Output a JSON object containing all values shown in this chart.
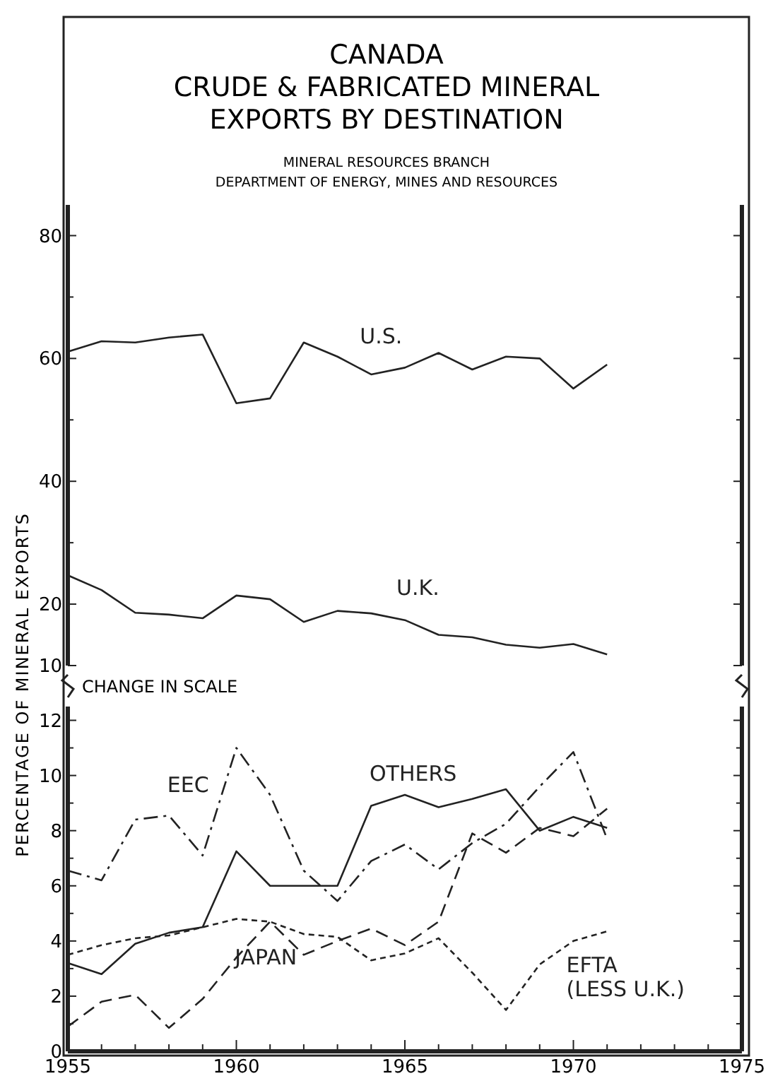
{
  "chart_data": [
    {
      "type": "line",
      "title": "CANADA\nCRUDE & FABRICATED MINERAL\nEXPORTS BY DESTINATION",
      "subtitle": "MINERAL RESOURCES BRANCH\nDEPARTMENT OF ENERGY, MINES AND RESOURCES",
      "x": [
        1955,
        1956,
        1957,
        1958,
        1959,
        1960,
        1961,
        1962,
        1963,
        1964,
        1965,
        1966,
        1967,
        1968,
        1969,
        1970,
        1971
      ],
      "xlim": [
        1955,
        1975
      ],
      "ylim": [
        10,
        85
      ],
      "yticks": [
        10,
        20,
        {
          "value": 30,
          "label": null
        },
        40,
        {
          "value": 50,
          "label": null
        },
        60,
        {
          "value": 70,
          "label": null
        },
        80
      ],
      "tick_labels": "y",
      "grid": false,
      "marker": "none",
      "series": [
        {
          "name": "U.S.",
          "color": "#222222",
          "line_style": "solid",
          "values": [
            61.1,
            62.8,
            62.6,
            63.4,
            63.9,
            52.7,
            53.5,
            62.6,
            60.3,
            57.4,
            58.5,
            60.9,
            58.2,
            60.3,
            60,
            55.1,
            59
          ]
        },
        {
          "name": "U.K.",
          "color": "#222222",
          "line_style": "solid",
          "values": [
            24.7,
            22.3,
            18.6,
            18.3,
            17.7,
            21.4,
            20.8,
            17.1,
            18.9,
            18.5,
            17.4,
            15,
            14.6,
            13.4,
            12.9,
            13.5,
            11.8
          ]
        }
      ]
    },
    {
      "type": "line",
      "ylabel": "PERCENTAGE OF MINERAL EXPORTS",
      "annotations": [
        "CHANGE IN SCALE"
      ],
      "x": [
        1955,
        1956,
        1957,
        1958,
        1959,
        1960,
        1961,
        1962,
        1963,
        1964,
        1965,
        1966,
        1967,
        1968,
        1969,
        1970,
        1971
      ],
      "xlim": [
        1955,
        1975
      ],
      "xticks": [
        1955,
        {
          "value": 1956,
          "label": null
        },
        {
          "value": 1957,
          "label": null
        },
        {
          "value": 1958,
          "label": null
        },
        {
          "value": 1959,
          "label": null
        },
        1960,
        {
          "value": 1961,
          "label": null
        },
        {
          "value": 1962,
          "label": null
        },
        {
          "value": 1963,
          "label": null
        },
        {
          "value": 1964,
          "label": null
        },
        1965,
        {
          "value": 1966,
          "label": null
        },
        {
          "value": 1967,
          "label": null
        },
        {
          "value": 1968,
          "label": null
        },
        {
          "value": 1969,
          "label": null
        },
        1970,
        {
          "value": 1971,
          "label": null
        },
        {
          "value": 1972,
          "label": null
        },
        {
          "value": 1973,
          "label": null
        },
        {
          "value": 1974,
          "label": null
        },
        1975
      ],
      "ylim": [
        0,
        12.5
      ],
      "yticks": [
        0,
        {
          "value": 1,
          "label": null
        },
        2,
        {
          "value": 3,
          "label": null
        },
        4,
        {
          "value": 5,
          "label": null
        },
        6,
        {
          "value": 7,
          "label": null
        },
        8,
        {
          "value": 9,
          "label": null
        },
        10,
        {
          "value": 11,
          "label": null
        },
        12
      ],
      "grid": false,
      "marker": "none",
      "series": [
        {
          "name": "EEC",
          "color": "#222222",
          "line_style": "dashdot",
          "values": [
            6.55,
            6.2,
            8.4,
            8.55,
            7.1,
            11,
            9.3,
            6.55,
            5.45,
            6.9,
            7.5,
            6.6,
            7.55,
            8.25,
            9.6,
            10.85,
            7.7
          ]
        },
        {
          "name": "OTHERS",
          "color": "#222222",
          "line_style": "solid",
          "values": [
            3.2,
            2.8,
            3.9,
            4.3,
            4.5,
            7.25,
            6,
            6,
            6,
            8.9,
            9.3,
            8.85,
            9.15,
            9.5,
            8,
            8.5,
            8.1
          ]
        },
        {
          "name": "JAPAN",
          "color": "#222222",
          "line_style": "dashed",
          "values": [
            0.9,
            1.8,
            2.05,
            0.85,
            1.9,
            3.4,
            4.7,
            3.5,
            4,
            4.45,
            3.85,
            4.7,
            7.9,
            7.2,
            8.1,
            7.8,
            8.8
          ]
        },
        {
          "name": "EFTA\n(LESS U.K.)",
          "color": "#222222",
          "line_style": "dotted",
          "values": [
            3.5,
            3.85,
            4.1,
            4.2,
            4.5,
            4.8,
            4.7,
            4.25,
            4.15,
            3.3,
            3.55,
            4.1,
            2.85,
            1.5,
            3.15,
            4,
            4.35
          ]
        }
      ]
    }
  ]
}
